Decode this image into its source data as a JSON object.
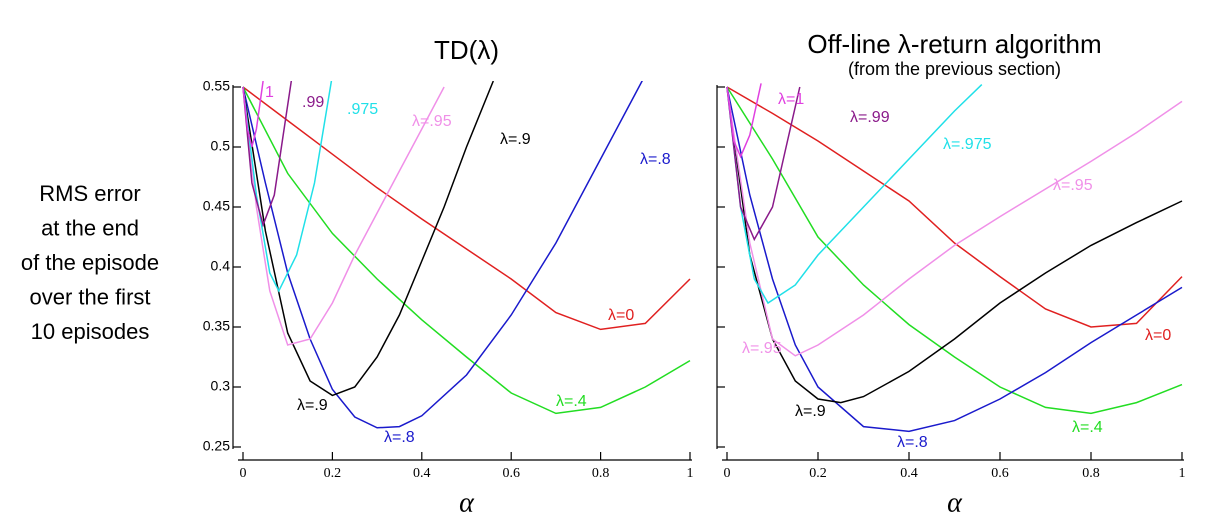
{
  "ylabel_lines": [
    "RMS error",
    "at the end",
    "of the episode",
    "over the first",
    "10 episodes"
  ],
  "chart_data": [
    {
      "type": "line",
      "title": "TD(λ)",
      "xlabel": "α",
      "xlim": [
        0,
        1
      ],
      "xticks": [
        0,
        0.2,
        0.4,
        0.6,
        0.8,
        1
      ],
      "ylim": [
        0.25,
        0.55
      ],
      "yticks": [
        0.25,
        0.3,
        0.35,
        0.4,
        0.45,
        0.5,
        0.55
      ],
      "ytick_labels_shown": true,
      "series": [
        {
          "labels": [
            "λ=0"
          ],
          "color": "#e02020",
          "x": [
            0,
            0.1,
            0.2,
            0.3,
            0.4,
            0.5,
            0.6,
            0.7,
            0.8,
            0.9,
            1
          ],
          "values": [
            0.55,
            0.522,
            0.494,
            0.466,
            0.44,
            0.415,
            0.39,
            0.362,
            0.348,
            0.353,
            0.39
          ]
        },
        {
          "labels": [
            "λ=.4"
          ],
          "color": "#22dd22",
          "x": [
            0,
            0.1,
            0.2,
            0.3,
            0.4,
            0.5,
            0.6,
            0.7,
            0.8,
            0.9,
            1
          ],
          "values": [
            0.55,
            0.478,
            0.428,
            0.39,
            0.356,
            0.325,
            0.295,
            0.278,
            0.283,
            0.3,
            0.322
          ]
        },
        {
          "labels": [
            "λ=.8",
            "λ=.8"
          ],
          "color": "#1a1acc",
          "x": [
            0,
            0.05,
            0.1,
            0.15,
            0.2,
            0.25,
            0.3,
            0.35,
            0.4,
            0.5,
            0.6,
            0.7,
            0.8,
            0.9
          ],
          "values": [
            0.55,
            0.47,
            0.395,
            0.34,
            0.298,
            0.275,
            0.266,
            0.267,
            0.276,
            0.31,
            0.36,
            0.42,
            0.49,
            0.56
          ]
        },
        {
          "labels": [
            "λ=.9",
            "λ=.9"
          ],
          "color": "#000000",
          "x": [
            0,
            0.05,
            0.1,
            0.15,
            0.2,
            0.25,
            0.3,
            0.35,
            0.4,
            0.45,
            0.5,
            0.56
          ],
          "values": [
            0.55,
            0.43,
            0.345,
            0.305,
            0.293,
            0.3,
            0.325,
            0.36,
            0.405,
            0.45,
            0.5,
            0.555
          ]
        },
        {
          "labels": [
            "λ=.95"
          ],
          "color": "#f090e8",
          "x": [
            0,
            0.03,
            0.06,
            0.1,
            0.15,
            0.2,
            0.25,
            0.3,
            0.35,
            0.4,
            0.45
          ],
          "values": [
            0.55,
            0.45,
            0.38,
            0.335,
            0.34,
            0.37,
            0.41,
            0.445,
            0.48,
            0.515,
            0.55
          ]
        },
        {
          "labels": [
            ".975"
          ],
          "color": "#20e0e8",
          "x": [
            0,
            0.03,
            0.06,
            0.08,
            0.12,
            0.16,
            0.2
          ],
          "values": [
            0.55,
            0.46,
            0.395,
            0.38,
            0.41,
            0.47,
            0.56
          ]
        },
        {
          "labels": [
            ".99"
          ],
          "color": "#8a1a8a",
          "x": [
            0,
            0.02,
            0.045,
            0.07,
            0.09,
            0.11
          ],
          "values": [
            0.55,
            0.47,
            0.435,
            0.46,
            0.51,
            0.56
          ]
        },
        {
          "labels": [
            "1"
          ],
          "color": "#e040e0",
          "x": [
            0,
            0.01,
            0.02,
            0.03,
            0.045
          ],
          "values": [
            0.55,
            0.515,
            0.5,
            0.515,
            0.555
          ]
        }
      ]
    },
    {
      "type": "line",
      "title": "Off-line λ-return algorithm",
      "subtitle": "(from the previous section)",
      "xlabel": "α",
      "xlim": [
        0,
        1
      ],
      "xticks": [
        0,
        0.2,
        0.4,
        0.6,
        0.8,
        1
      ],
      "ylim": [
        0.25,
        0.55
      ],
      "yticks": [
        0.25,
        0.3,
        0.35,
        0.4,
        0.45,
        0.5,
        0.55
      ],
      "ytick_labels_shown": false,
      "series": [
        {
          "labels": [
            "λ=0"
          ],
          "color": "#e02020",
          "x": [
            0,
            0.1,
            0.2,
            0.3,
            0.4,
            0.5,
            0.6,
            0.7,
            0.8,
            0.9,
            1
          ],
          "values": [
            0.55,
            0.528,
            0.505,
            0.48,
            0.455,
            0.42,
            0.392,
            0.365,
            0.35,
            0.353,
            0.392
          ]
        },
        {
          "labels": [
            "λ=.4"
          ],
          "color": "#22dd22",
          "x": [
            0,
            0.1,
            0.2,
            0.3,
            0.4,
            0.5,
            0.6,
            0.7,
            0.8,
            0.9,
            1
          ],
          "values": [
            0.55,
            0.49,
            0.425,
            0.385,
            0.352,
            0.325,
            0.3,
            0.283,
            0.278,
            0.287,
            0.302
          ]
        },
        {
          "labels": [
            "λ=.8"
          ],
          "color": "#1a1acc",
          "x": [
            0,
            0.05,
            0.1,
            0.15,
            0.2,
            0.3,
            0.4,
            0.5,
            0.6,
            0.7,
            0.8,
            0.9,
            1
          ],
          "values": [
            0.55,
            0.46,
            0.39,
            0.335,
            0.3,
            0.267,
            0.263,
            0.272,
            0.29,
            0.312,
            0.337,
            0.36,
            0.383
          ]
        },
        {
          "labels": [
            "λ=.9"
          ],
          "color": "#000000",
          "x": [
            0,
            0.05,
            0.1,
            0.15,
            0.2,
            0.25,
            0.3,
            0.4,
            0.5,
            0.6,
            0.7,
            0.8,
            0.9,
            1
          ],
          "values": [
            0.55,
            0.41,
            0.34,
            0.305,
            0.29,
            0.287,
            0.292,
            0.313,
            0.34,
            0.37,
            0.395,
            0.418,
            0.437,
            0.455
          ]
        },
        {
          "labels": [
            "λ=.95",
            "λ=.95"
          ],
          "color": "#f090e8",
          "x": [
            0,
            0.05,
            0.1,
            0.15,
            0.2,
            0.3,
            0.4,
            0.5,
            0.6,
            0.7,
            0.8,
            0.9,
            1
          ],
          "values": [
            0.55,
            0.42,
            0.34,
            0.326,
            0.335,
            0.36,
            0.39,
            0.418,
            0.442,
            0.465,
            0.488,
            0.512,
            0.538
          ]
        },
        {
          "labels": [
            "λ=.975"
          ],
          "color": "#20e0e8",
          "x": [
            0,
            0.03,
            0.06,
            0.09,
            0.15,
            0.2,
            0.3,
            0.4,
            0.5,
            0.56
          ],
          "values": [
            0.55,
            0.45,
            0.39,
            0.37,
            0.385,
            0.41,
            0.45,
            0.49,
            0.53,
            0.552
          ]
        },
        {
          "labels": [
            "λ=.99"
          ],
          "color": "#8a1a8a",
          "x": [
            0,
            0.03,
            0.06,
            0.1,
            0.13,
            0.16
          ],
          "values": [
            0.55,
            0.45,
            0.423,
            0.45,
            0.5,
            0.55
          ]
        },
        {
          "labels": [
            "λ=1"
          ],
          "color": "#e040e0",
          "x": [
            0,
            0.015,
            0.03,
            0.05,
            0.075
          ],
          "values": [
            0.55,
            0.505,
            0.492,
            0.51,
            0.553
          ]
        }
      ]
    }
  ]
}
